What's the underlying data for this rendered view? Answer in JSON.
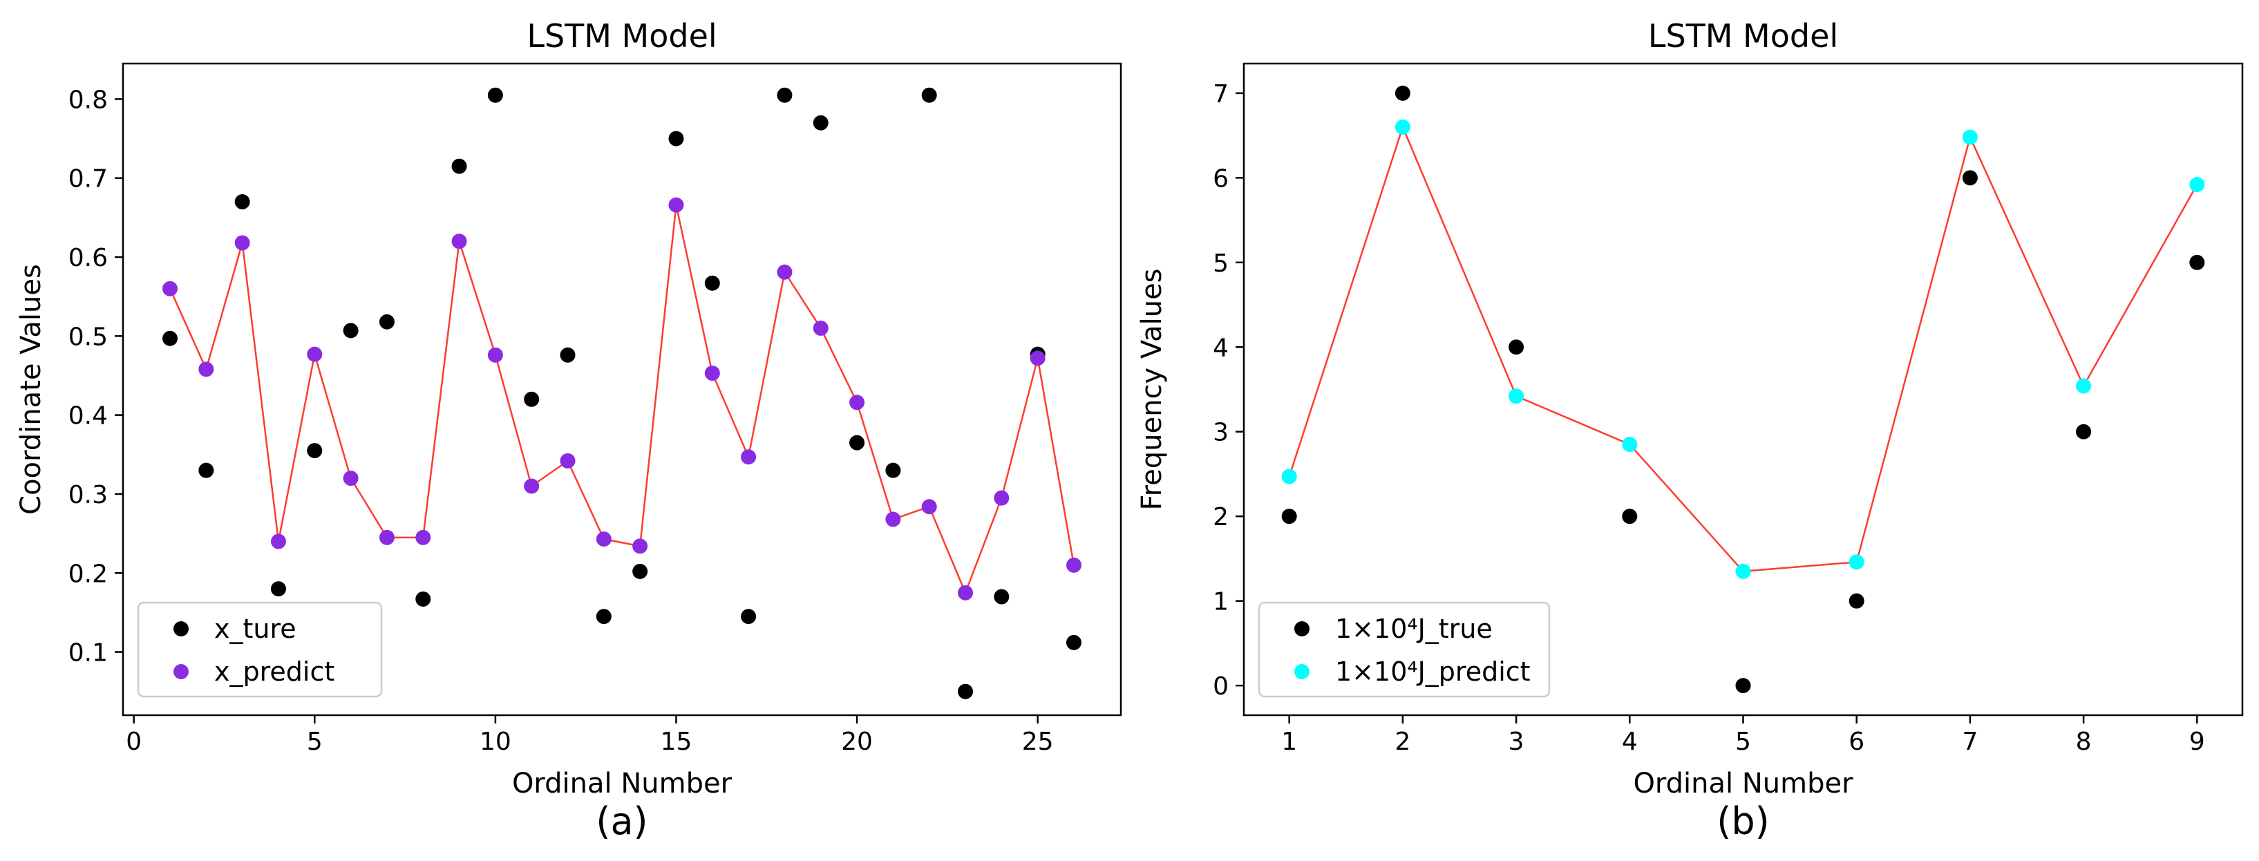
{
  "colors": {
    "true_marker": "#000000",
    "x_predict_marker": "#8a2be2",
    "j_predict_marker": "#00ffff",
    "line": "#ff3b30",
    "axis": "#000000"
  },
  "chart_data": [
    {
      "type": "scatter",
      "title": "LSTM Model",
      "panel_label": "(a)",
      "xlabel": "Ordinal Number",
      "ylabel": "Coordinate Values",
      "xlim": [
        -0.3,
        27.3
      ],
      "ylim": [
        0.02,
        0.845
      ],
      "xticks": [
        0,
        5,
        10,
        15,
        20,
        25
      ],
      "xtick_labels": [
        "0",
        "5",
        "10",
        "15",
        "20",
        "25"
      ],
      "yticks": [
        0.1,
        0.2,
        0.3,
        0.4,
        0.5,
        0.6,
        0.7,
        0.8
      ],
      "ytick_labels": [
        "0.1",
        "0.2",
        "0.3",
        "0.4",
        "0.5",
        "0.6",
        "0.7",
        "0.8"
      ],
      "legend_position": "lower-left",
      "series": [
        {
          "name": "x_ture",
          "legend_label": "x_ture",
          "color": "#000000",
          "line": false,
          "x": [
            1,
            2,
            3,
            4,
            5,
            6,
            7,
            8,
            9,
            10,
            11,
            12,
            13,
            14,
            15,
            16,
            17,
            18,
            19,
            20,
            21,
            22,
            23,
            24,
            25,
            26
          ],
          "y": [
            0.497,
            0.33,
            0.67,
            0.18,
            0.355,
            0.507,
            0.518,
            0.167,
            0.715,
            0.805,
            0.42,
            0.476,
            0.145,
            0.202,
            0.75,
            0.567,
            0.145,
            0.805,
            0.77,
            0.365,
            0.33,
            0.805,
            0.05,
            0.17,
            0.477,
            0.112
          ]
        },
        {
          "name": "x_predict",
          "legend_label": "x_predict",
          "color": "#8a2be2",
          "line": true,
          "x": [
            1,
            2,
            3,
            4,
            5,
            6,
            7,
            8,
            9,
            10,
            11,
            12,
            13,
            14,
            15,
            16,
            17,
            18,
            19,
            20,
            21,
            22,
            23,
            24,
            25,
            26
          ],
          "y": [
            0.56,
            0.458,
            0.618,
            0.24,
            0.477,
            0.32,
            0.245,
            0.245,
            0.62,
            0.476,
            0.31,
            0.342,
            0.243,
            0.234,
            0.666,
            0.453,
            0.347,
            0.581,
            0.51,
            0.416,
            0.268,
            0.284,
            0.175,
            0.295,
            0.472,
            0.21
          ]
        }
      ]
    },
    {
      "type": "scatter",
      "title": "LSTM Model",
      "panel_label": "(b)",
      "xlabel": "Ordinal Number",
      "ylabel": "Frequency Values",
      "xlim": [
        0.6,
        9.4
      ],
      "ylim": [
        -0.35,
        7.35
      ],
      "xticks": [
        1,
        2,
        3,
        4,
        5,
        6,
        7,
        8,
        9
      ],
      "xtick_labels": [
        "1",
        "2",
        "3",
        "4",
        "5",
        "6",
        "7",
        "8",
        "9"
      ],
      "yticks": [
        0,
        1,
        2,
        3,
        4,
        5,
        6,
        7
      ],
      "ytick_labels": [
        "0",
        "1",
        "2",
        "3",
        "4",
        "5",
        "6",
        "7"
      ],
      "legend_position": "lower-left",
      "series": [
        {
          "name": "J_true",
          "legend_label": "1×10⁴J_true",
          "color": "#000000",
          "line": false,
          "x": [
            1,
            2,
            3,
            4,
            5,
            6,
            7,
            8,
            9
          ],
          "y": [
            2,
            7,
            4,
            2,
            0,
            1,
            6,
            3,
            5
          ]
        },
        {
          "name": "J_predict",
          "legend_label": "1×10⁴J_predict",
          "color": "#00ffff",
          "line": true,
          "x": [
            1,
            2,
            3,
            4,
            5,
            6,
            7,
            8,
            9
          ],
          "y": [
            2.47,
            6.6,
            3.42,
            2.85,
            1.35,
            1.46,
            6.48,
            3.54,
            5.92
          ]
        }
      ]
    }
  ]
}
